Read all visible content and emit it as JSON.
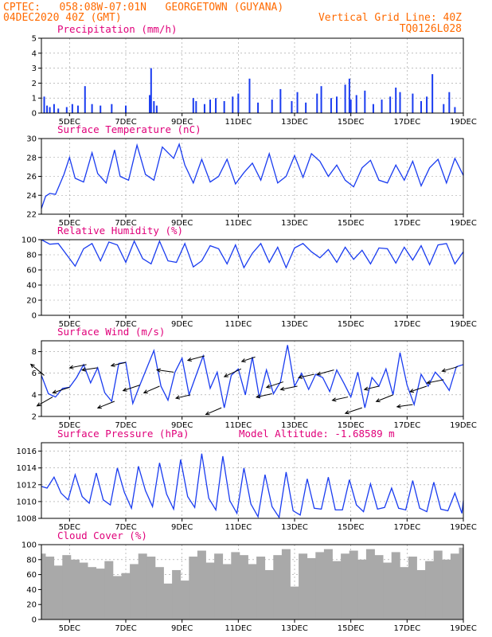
{
  "header": {
    "line1": "CPTEC:   058:08W-07:01N   GEORGETOWN (GUYANA)",
    "line2_left": "04DEC2020 40Z (GMT)",
    "line2_right": "Vertical Grid Line: 40Z",
    "line3_right": "TQ0126L028"
  },
  "colors": {
    "header": "#ff6a00",
    "title": "#e0007a",
    "series": "#1a3cf0",
    "cloud": "#a9a9a9",
    "wind_arrow": "#000000",
    "grid": "#9a9a9a"
  },
  "x_axis": {
    "ticks": [
      "5DEC",
      "7DEC",
      "9DEC",
      "11DEC",
      "13DEC",
      "15DEC",
      "17DEC",
      "19DEC"
    ],
    "tick_days": [
      5,
      7,
      9,
      11,
      13,
      15,
      17,
      19
    ],
    "range_days": [
      4.0,
      19.0
    ]
  },
  "chart_data": [
    {
      "type": "bar",
      "title": "Precipitation (mm/h)",
      "ylim": [
        0,
        5
      ],
      "yticks": [
        0,
        1,
        2,
        3,
        4,
        5
      ],
      "x": [
        4.1,
        4.2,
        4.3,
        4.45,
        4.6,
        4.9,
        5.1,
        5.3,
        5.55,
        5.8,
        6.1,
        6.5,
        7.0,
        7.85,
        7.9,
        8.0,
        8.1,
        9.4,
        9.5,
        9.8,
        10.0,
        10.2,
        10.5,
        10.8,
        11.0,
        11.4,
        11.7,
        12.2,
        12.5,
        12.9,
        13.1,
        13.4,
        13.8,
        13.95,
        14.3,
        14.5,
        14.8,
        14.95,
        15.0,
        15.2,
        15.5,
        15.8,
        16.1,
        16.4,
        16.6,
        16.75,
        17.2,
        17.5,
        17.7,
        17.9,
        18.3,
        18.5,
        18.7
      ],
      "values": [
        1.1,
        0.5,
        0.4,
        0.6,
        0.3,
        0.4,
        0.6,
        0.5,
        1.8,
        0.6,
        0.5,
        0.6,
        0.5,
        1.2,
        3.0,
        0.8,
        0.5,
        1.0,
        0.8,
        0.6,
        0.9,
        1.0,
        0.8,
        1.1,
        1.3,
        2.3,
        0.7,
        0.9,
        1.6,
        0.8,
        1.4,
        0.7,
        1.3,
        1.8,
        1.0,
        1.1,
        1.9,
        2.3,
        0.9,
        1.2,
        1.5,
        0.6,
        0.9,
        1.1,
        1.7,
        1.4,
        1.3,
        0.8,
        1.1,
        2.6,
        0.6,
        1.4,
        0.4
      ]
    },
    {
      "type": "line",
      "title": "Surface Temperature (nC)",
      "ylim": [
        22,
        30
      ],
      "yticks": [
        22,
        24,
        26,
        28,
        30
      ],
      "x": [
        4.0,
        4.15,
        4.3,
        4.5,
        4.8,
        5.0,
        5.2,
        5.5,
        5.8,
        6.0,
        6.3,
        6.6,
        6.8,
        7.1,
        7.4,
        7.7,
        8.0,
        8.3,
        8.7,
        8.9,
        9.1,
        9.4,
        9.7,
        10.0,
        10.3,
        10.6,
        10.9,
        11.2,
        11.5,
        11.8,
        12.1,
        12.4,
        12.7,
        13.0,
        13.3,
        13.6,
        13.9,
        14.2,
        14.5,
        14.8,
        15.1,
        15.4,
        15.7,
        16.0,
        16.3,
        16.6,
        16.9,
        17.2,
        17.5,
        17.8,
        18.1,
        18.4,
        18.7,
        19.0
      ],
      "values": [
        22.6,
        23.9,
        24.2,
        24.1,
        26.2,
        28.0,
        25.8,
        25.4,
        28.5,
        26.3,
        25.3,
        28.8,
        26.0,
        25.6,
        29.3,
        26.2,
        25.6,
        29.1,
        27.9,
        29.4,
        27.2,
        25.3,
        27.8,
        25.4,
        26.0,
        27.8,
        25.2,
        26.4,
        27.4,
        25.6,
        28.4,
        25.3,
        26.0,
        28.2,
        25.9,
        28.4,
        27.6,
        26.0,
        27.2,
        25.6,
        24.9,
        26.9,
        27.7,
        25.6,
        25.3,
        27.2,
        25.6,
        27.6,
        25.0,
        26.9,
        27.8,
        25.3,
        27.9,
        26.1
      ]
    },
    {
      "type": "line",
      "title": "Relative Humidity (%)",
      "ylim": [
        0,
        100
      ],
      "yticks": [
        0,
        20,
        40,
        60,
        80,
        100
      ],
      "x": [
        4.0,
        4.3,
        4.6,
        4.9,
        5.2,
        5.5,
        5.8,
        6.1,
        6.4,
        6.7,
        7.0,
        7.3,
        7.6,
        7.9,
        8.2,
        8.5,
        8.8,
        9.1,
        9.4,
        9.7,
        10.0,
        10.3,
        10.6,
        10.9,
        11.2,
        11.5,
        11.8,
        12.1,
        12.4,
        12.7,
        13.0,
        13.3,
        13.6,
        13.9,
        14.2,
        14.5,
        14.8,
        15.1,
        15.4,
        15.7,
        16.0,
        16.3,
        16.6,
        16.9,
        17.2,
        17.5,
        17.8,
        18.1,
        18.4,
        18.7,
        19.0
      ],
      "values": [
        100,
        94,
        95,
        80,
        65,
        88,
        95,
        72,
        97,
        93,
        70,
        98,
        75,
        68,
        98,
        72,
        70,
        95,
        64,
        72,
        92,
        88,
        68,
        93,
        63,
        82,
        95,
        70,
        90,
        63,
        89,
        95,
        84,
        76,
        87,
        70,
        90,
        74,
        86,
        68,
        89,
        88,
        69,
        90,
        73,
        92,
        67,
        93,
        95,
        68,
        84
      ]
    },
    {
      "type": "line",
      "title": "Surface Wind (m/s)",
      "ylim": [
        2,
        9
      ],
      "yticks": [
        2,
        4,
        6,
        8
      ],
      "x": [
        4.0,
        4.25,
        4.5,
        4.75,
        5.0,
        5.25,
        5.5,
        5.75,
        6.0,
        6.25,
        6.5,
        6.75,
        7.0,
        7.25,
        7.5,
        7.75,
        8.0,
        8.25,
        8.5,
        8.75,
        9.0,
        9.25,
        9.5,
        9.75,
        10.0,
        10.25,
        10.5,
        10.75,
        11.0,
        11.25,
        11.5,
        11.75,
        12.0,
        12.25,
        12.5,
        12.75,
        13.0,
        13.25,
        13.5,
        13.75,
        14.0,
        14.25,
        14.5,
        14.75,
        15.0,
        15.25,
        15.5,
        15.75,
        16.0,
        16.25,
        16.5,
        16.75,
        17.0,
        17.25,
        17.5,
        17.75,
        18.0,
        18.25,
        18.5,
        18.75,
        19.0
      ],
      "values": [
        5.8,
        4.1,
        3.8,
        4.6,
        4.7,
        5.6,
        6.8,
        5.1,
        6.5,
        4.2,
        3.4,
        6.9,
        7.0,
        3.2,
        4.9,
        6.5,
        8.1,
        4.8,
        3.5,
        6.1,
        7.4,
        4.0,
        5.8,
        7.6,
        4.6,
        6.1,
        2.8,
        5.8,
        6.4,
        4.0,
        7.5,
        3.7,
        6.3,
        4.1,
        5.2,
        8.6,
        4.8,
        6.0,
        4.5,
        5.9,
        5.6,
        4.3,
        6.3,
        5.1,
        3.8,
        6.1,
        2.8,
        5.6,
        4.8,
        6.4,
        4.0,
        7.9,
        4.9,
        3.1,
        5.9,
        4.8,
        6.1,
        5.4,
        4.4,
        6.6,
        6.8
      ],
      "arrows": {
        "x": [
          4.1,
          4.4,
          5.0,
          5.6,
          6.0,
          6.6,
          7.0,
          7.5,
          8.2,
          8.7,
          9.3,
          9.8,
          10.4,
          11.1,
          11.6,
          12.2,
          12.6,
          13.1,
          13.7,
          14.4,
          14.9,
          15.4,
          16.0,
          16.5,
          17.2,
          17.7,
          18.3,
          18.8
        ],
        "u": [
          -1.2,
          -1.4,
          -1.5,
          -1.5,
          -1.4,
          -1.5,
          -1.3,
          -1.5,
          -1.4,
          -1.5,
          -1.3,
          -1.5,
          -1.4,
          -1.5,
          -1.2,
          -1.4,
          -1.5,
          -1.5,
          -1.4,
          -1.5,
          -1.4,
          -1.5,
          -1.3,
          -1.5,
          -1.4,
          -1.5,
          -1.5,
          -1.4
        ],
        "v": [
          1.0,
          -0.8,
          -0.5,
          -0.3,
          -0.2,
          -0.6,
          -0.3,
          -0.5,
          -0.6,
          0.2,
          -0.3,
          -0.4,
          -0.6,
          -0.7,
          -0.4,
          -0.3,
          -0.5,
          -0.3,
          -0.3,
          -0.4,
          -0.3,
          -0.5,
          -0.3,
          -0.6,
          -0.2,
          -0.5,
          -0.3,
          -0.4
        ]
      }
    },
    {
      "type": "line",
      "title": "Surface Pressure (hPa)",
      "annotation": "Model Altitude: -1.68589 m",
      "ylim": [
        1008,
        1017
      ],
      "yticks": [
        1008,
        1010,
        1012,
        1014,
        1016
      ],
      "x": [
        4.0,
        4.2,
        4.45,
        4.7,
        4.95,
        5.2,
        5.45,
        5.7,
        5.95,
        6.2,
        6.45,
        6.7,
        6.95,
        7.2,
        7.45,
        7.7,
        7.95,
        8.2,
        8.45,
        8.7,
        8.95,
        9.2,
        9.45,
        9.7,
        9.95,
        10.2,
        10.45,
        10.7,
        10.95,
        11.2,
        11.45,
        11.7,
        11.95,
        12.2,
        12.45,
        12.7,
        12.95,
        13.2,
        13.45,
        13.7,
        13.95,
        14.2,
        14.45,
        14.7,
        14.95,
        15.2,
        15.45,
        15.7,
        15.95,
        16.2,
        16.45,
        16.7,
        16.95,
        17.2,
        17.45,
        17.7,
        17.95,
        18.2,
        18.45,
        18.7,
        18.95,
        19.0
      ],
      "values": [
        1011.8,
        1011.6,
        1012.9,
        1011.0,
        1010.2,
        1013.2,
        1010.6,
        1009.8,
        1013.4,
        1010.2,
        1009.6,
        1014.0,
        1011.1,
        1009.2,
        1014.2,
        1011.3,
        1009.4,
        1014.6,
        1010.9,
        1009.1,
        1015.0,
        1010.6,
        1009.3,
        1015.7,
        1010.4,
        1009.0,
        1015.4,
        1010.1,
        1008.6,
        1014.0,
        1009.7,
        1008.2,
        1013.2,
        1009.4,
        1008.1,
        1013.5,
        1008.9,
        1008.4,
        1012.7,
        1009.2,
        1009.1,
        1012.9,
        1009.0,
        1009.0,
        1012.6,
        1009.6,
        1008.8,
        1012.1,
        1009.1,
        1009.3,
        1011.6,
        1009.2,
        1009.0,
        1012.5,
        1009.2,
        1008.8,
        1012.3,
        1009.1,
        1008.9,
        1011.0,
        1008.6,
        1010.1
      ]
    },
    {
      "type": "bar",
      "title": "Cloud Cover (%)",
      "ylim": [
        0,
        100
      ],
      "yticks": [
        0,
        20,
        40,
        60,
        80,
        100
      ],
      "x": [
        4.0,
        4.3,
        4.6,
        4.9,
        5.2,
        5.5,
        5.8,
        6.1,
        6.4,
        6.7,
        7.0,
        7.3,
        7.6,
        7.9,
        8.2,
        8.5,
        8.8,
        9.1,
        9.4,
        9.7,
        10.0,
        10.3,
        10.6,
        10.9,
        11.2,
        11.5,
        11.8,
        12.1,
        12.4,
        12.7,
        13.0,
        13.3,
        13.6,
        13.9,
        14.2,
        14.5,
        14.8,
        15.1,
        15.4,
        15.7,
        16.0,
        16.3,
        16.6,
        16.9,
        17.2,
        17.5,
        17.8,
        18.1,
        18.4,
        18.7,
        19.0
      ],
      "values": [
        88,
        84,
        72,
        86,
        80,
        76,
        70,
        68,
        78,
        58,
        62,
        74,
        88,
        84,
        70,
        48,
        66,
        52,
        84,
        92,
        76,
        88,
        74,
        90,
        86,
        74,
        84,
        66,
        86,
        94,
        44,
        88,
        82,
        90,
        94,
        78,
        88,
        92,
        80,
        94,
        86,
        76,
        90,
        70,
        84,
        66,
        78,
        92,
        80,
        88,
        96
      ]
    }
  ]
}
